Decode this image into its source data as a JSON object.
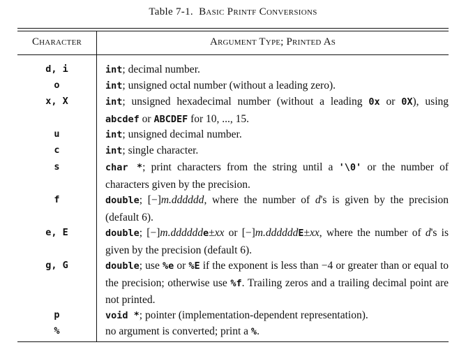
{
  "caption": {
    "number": "Table 7-1.",
    "title": "Basic Printf Conversions"
  },
  "table": {
    "headers": {
      "character": "Character",
      "argument": "Argument Type; Printed As"
    },
    "rows": [
      {
        "character": "d, i",
        "type_code": "int",
        "text": "; decimal number."
      },
      {
        "character": "o",
        "type_code": "int",
        "text": "; unsigned octal number (without a leading zero)."
      },
      {
        "character": "x, X",
        "type_code": "int",
        "text_a": "; unsigned hexadecimal number (without a leading ",
        "code_a": "0x",
        "text_b": " or ",
        "code_b": "0X",
        "text_c": "), using ",
        "code_c": "abcdef",
        "text_d": " or ",
        "code_d": "ABCDEF",
        "text_e": " for 10, ..., 15."
      },
      {
        "character": "u",
        "type_code": "int",
        "text": "; unsigned decimal number."
      },
      {
        "character": "c",
        "type_code": "int",
        "text": "; single character."
      },
      {
        "character": "s",
        "type_code": "char *",
        "text_a": "; print characters from the string until a ",
        "code_a": "'\\0'",
        "text_b": " or the number of characters given by the precision."
      },
      {
        "character": "f",
        "type_code": "double",
        "text_a": "; [−]",
        "ital_a": "m.dddddd",
        "text_b": ", where the number of ",
        "ital_b": "d",
        "text_c": "'s is given by the precision (default 6)."
      },
      {
        "character": "e, E",
        "type_code": "double",
        "text_a": "; [−]",
        "ital_a": "m.dddddd",
        "code_a": "e",
        "text_b": "±",
        "ital_b": "xx",
        "text_c": " or [−]",
        "ital_c": "m.dddddd",
        "code_b": "E",
        "text_d": "±",
        "ital_d": "xx",
        "text_e": ", where the number of ",
        "ital_e": "d",
        "text_f": "'s is given by the precision (default 6)."
      },
      {
        "character": "g, G",
        "type_code": "double",
        "text_a": "; use ",
        "code_a": "%e",
        "text_b": " or ",
        "code_b": "%E",
        "text_c": " if the exponent is less than −4 or greater than or equal to the precision; otherwise use ",
        "code_c": "%f",
        "text_d": ". Trailing zeros and a trailing decimal point are not printed."
      },
      {
        "character": "p",
        "type_code": "void *",
        "text": "; pointer (implementation-dependent representation)."
      },
      {
        "character": "%",
        "text_a": "no argument is converted; print a ",
        "code_a": "%",
        "text_b": "."
      }
    ]
  }
}
